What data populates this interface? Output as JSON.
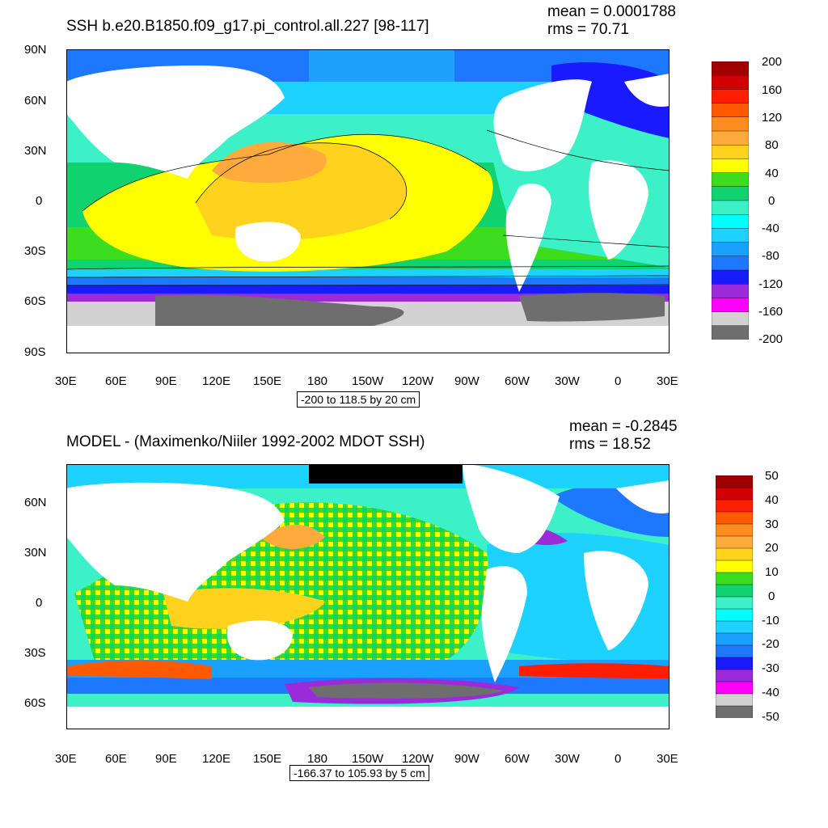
{
  "palette": [
    "#6e6e6e",
    "#d2d2d2",
    "#ff00ff",
    "#9b2bd8",
    "#1a1aff",
    "#1e78ff",
    "#1aa0ff",
    "#1ed2ff",
    "#00ffff",
    "#3cf0c8",
    "#10d26e",
    "#3cdc1e",
    "#ffff00",
    "#ffd21e",
    "#ffaa3c",
    "#ff8c1e",
    "#ff5a00",
    "#ff1e00",
    "#d20000",
    "#a00000"
  ],
  "land_color": "#ffffff",
  "panels": [
    {
      "title": "SSH b.e20.B1850.f09_g17.pi_control.all.227 [98-117]",
      "mean": "mean = 0.0001788",
      "rms": "rms = 70.71",
      "range_label": "-200 to 118.5 by 20 cm",
      "y_tick_labels": [
        "90N",
        "60N",
        "30N",
        "0",
        "30S",
        "60S",
        "90S"
      ],
      "x_tick_labels": [
        "30E",
        "60E",
        "90E",
        "120E",
        "150E",
        "180",
        "150W",
        "120W",
        "90W",
        "60W",
        "30W",
        "0",
        "30E"
      ],
      "colorbar_labels": [
        "200",
        "160",
        "120",
        "80",
        "40",
        "0",
        "-40",
        "-80",
        "-120",
        "-160",
        "-200"
      ],
      "lat_range": [
        -90,
        90
      ],
      "contour_lines": true
    },
    {
      "title": "MODEL - (Maximenko/Niiler 1992-2002 MDOT SSH)",
      "mean": "mean = -0.2845",
      "rms": "rms = 18.52",
      "range_label": "-166.37 to 105.93 by 5 cm",
      "y_tick_labels": [
        "60N",
        "30N",
        "0",
        "30S",
        "60S"
      ],
      "x_tick_labels": [
        "30E",
        "60E",
        "90E",
        "120E",
        "150E",
        "180",
        "150W",
        "120W",
        "90W",
        "60W",
        "30W",
        "0",
        "30E"
      ],
      "colorbar_labels": [
        "50",
        "40",
        "30",
        "20",
        "10",
        "0",
        "-10",
        "-20",
        "-30",
        "-40",
        "-50"
      ],
      "lat_range": [
        -75,
        85
      ],
      "contour_lines": false
    }
  ]
}
